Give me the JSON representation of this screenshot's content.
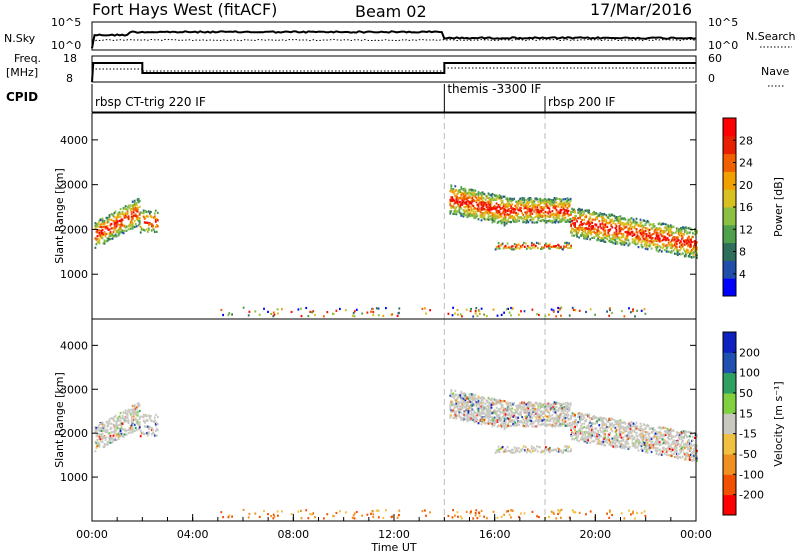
{
  "header": {
    "title": "Fort Hays West (fitACF)",
    "beam": "Beam 02",
    "date": "17/Mar/2016"
  },
  "noise_panel": {
    "left_label": "N.Sky",
    "right_label": "N.Search",
    "left_ticks": [
      "10^5",
      "10^0"
    ],
    "right_ticks": [
      "10^5",
      "10^0"
    ]
  },
  "freq_panel": {
    "left_label_line1": "Freq.",
    "left_label_line2": "[MHz]",
    "left_ticks": [
      "18",
      "8"
    ],
    "right_label": "Nave",
    "right_ticks": [
      "60",
      "0"
    ]
  },
  "cpid": {
    "label": "CPID",
    "segments": [
      {
        "start_h": 0.0,
        "name": "rbsp CT-trig 220 IF"
      },
      {
        "start_h": 14.0,
        "name": "themis -3300 IF"
      },
      {
        "start_h": 18.0,
        "name": "rbsp 200 IF"
      }
    ]
  },
  "chart_data": [
    {
      "type": "heatmap",
      "name": "power",
      "ylabel": "Slant Range [km]",
      "xlabel": "",
      "xlim": [
        0,
        24
      ],
      "ylim": [
        0,
        4600
      ],
      "yticks": [
        "1000",
        "2000",
        "3000",
        "4000"
      ],
      "colorbar": {
        "label": "Power [dB]",
        "ticks": [
          "4",
          "8",
          "12",
          "16",
          "20",
          "24",
          "28"
        ],
        "colors": [
          "#0000ff",
          "#1f4fa8",
          "#2f6e5a",
          "#4fa04a",
          "#8cc040",
          "#d8c020",
          "#f0a000",
          "#f06000",
          "#e82000",
          "#ff0000"
        ]
      }
    },
    {
      "type": "heatmap",
      "name": "velocity",
      "ylabel": "Slant Range [km]",
      "xlabel": "Time UT",
      "xlim": [
        0,
        24
      ],
      "ylim": [
        0,
        4600
      ],
      "yticks": [
        "1000",
        "2000",
        "3000",
        "4000"
      ],
      "xticks": [
        "00:00",
        "04:00",
        "08:00",
        "12:00",
        "16:00",
        "20:00",
        "00:00"
      ],
      "colorbar": {
        "label": "Velocity [m s⁻¹]",
        "ticks": [
          "200",
          "100",
          "50",
          "15",
          "-15",
          "-50",
          "-100",
          "-200"
        ],
        "colors": [
          "#1020c0",
          "#2050b0",
          "#30a060",
          "#80d040",
          "#c8c8c0",
          "#f0c040",
          "#f09020",
          "#f05000",
          "#ff0000"
        ]
      }
    }
  ]
}
